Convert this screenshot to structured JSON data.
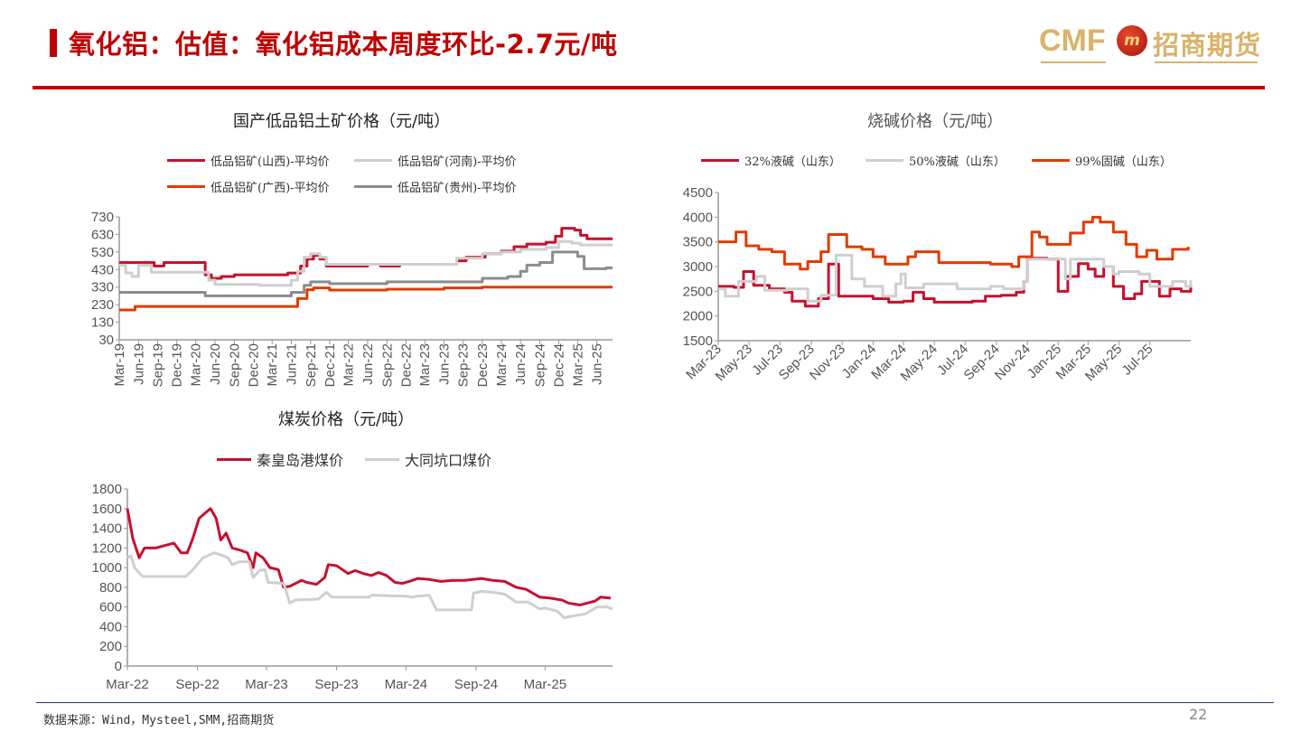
{
  "header": {
    "title": "氧化铝：估值：氧化铝成本周度环比-2.7元/吨",
    "logo": {
      "latin": "CMF",
      "emblem": "m",
      "chinese": "招商期货"
    }
  },
  "footer": {
    "source": "数据来源：Wind，Mysteel,SMM,招商期货",
    "page_number": "22"
  },
  "colors": {
    "accent": "#c00000",
    "red": "#c8102e",
    "light_grey": "#cfcfcf",
    "orange": "#e03c00",
    "dark_grey": "#8c8c8c"
  },
  "chart_data": [
    {
      "type": "line",
      "interpolation": "step",
      "title": "国产低品铝土矿价格（元/吨）",
      "ylim": [
        30,
        730
      ],
      "yticks": [
        "730",
        "630",
        "530",
        "430",
        "330",
        "230",
        "130",
        "30"
      ],
      "xlim": [
        "2019-03-01",
        "2025-08-15"
      ],
      "xticks": [
        "Mar-19",
        "Jun-19",
        "Sep-19",
        "Dec-19",
        "Mar-20",
        "Jun-20",
        "Sep-20",
        "Dec-20",
        "Mar-21",
        "Jun-21",
        "Sep-21",
        "Dec-21",
        "Mar-22",
        "Jun-22",
        "Sep-22",
        "Dec-22",
        "Mar-23",
        "Jun-23",
        "Sep-23",
        "Dec-23",
        "Mar-24",
        "Jun-24",
        "Sep-24",
        "Dec-24",
        "Mar-25",
        "Jun-25"
      ],
      "legend_position": "top",
      "series": [
        {
          "name": "低品铝矿(山西)-平均价",
          "color": "#c8102e",
          "x": [
            "2019-03-01",
            "2019-08-15",
            "2019-10-01",
            "2020-03-01",
            "2020-04-15",
            "2020-05-15",
            "2020-07-01",
            "2020-09-01",
            "2021-05-15",
            "2021-07-15",
            "2021-08-15",
            "2021-09-15",
            "2021-10-15",
            "2021-11-15",
            "2022-06-01",
            "2022-08-01",
            "2022-11-01",
            "2023-06-15",
            "2023-08-01",
            "2023-09-15",
            "2023-12-15",
            "2024-03-01",
            "2024-05-01",
            "2024-07-01",
            "2024-10-01",
            "2024-11-15",
            "2024-12-15",
            "2025-02-15",
            "2025-03-15",
            "2025-04-15",
            "2025-08-15"
          ],
          "y": [
            470,
            450,
            470,
            470,
            400,
            380,
            390,
            400,
            410,
            450,
            490,
            510,
            490,
            450,
            460,
            450,
            460,
            460,
            480,
            500,
            520,
            535,
            560,
            575,
            585,
            620,
            665,
            655,
            625,
            605,
            605
          ]
        },
        {
          "name": "低品铝矿(河南)-平均价",
          "color": "#cfcfcf",
          "x": [
            "2019-03-01",
            "2019-04-01",
            "2019-05-01",
            "2019-06-01",
            "2019-08-01",
            "2020-03-15",
            "2020-05-01",
            "2020-06-01",
            "2021-01-01",
            "2021-06-01",
            "2021-07-01",
            "2021-08-01",
            "2021-09-01",
            "2021-10-15",
            "2021-11-15",
            "2023-06-15",
            "2023-08-01",
            "2023-12-01",
            "2024-03-01",
            "2024-06-01",
            "2024-10-01",
            "2024-12-01",
            "2025-02-01",
            "2025-03-15",
            "2025-08-15"
          ],
          "y": [
            455,
            410,
            390,
            455,
            415,
            415,
            370,
            345,
            340,
            370,
            420,
            500,
            520,
            500,
            460,
            460,
            495,
            520,
            530,
            545,
            555,
            590,
            580,
            570,
            570
          ]
        },
        {
          "name": "低品铝矿(广西)-平均价",
          "color": "#e03c00",
          "x": [
            "2019-03-01",
            "2019-05-15",
            "2021-06-01",
            "2021-07-01",
            "2021-08-15",
            "2021-09-15",
            "2021-12-01",
            "2022-09-01",
            "2023-06-01",
            "2023-12-01",
            "2025-08-15"
          ],
          "y": [
            200,
            220,
            220,
            265,
            315,
            325,
            313,
            318,
            325,
            330,
            330
          ]
        },
        {
          "name": "低品铝矿(贵州)-平均价",
          "color": "#8c8c8c",
          "x": [
            "2019-03-01",
            "2020-04-15",
            "2021-06-01",
            "2021-08-01",
            "2021-09-01",
            "2021-12-01",
            "2022-09-01",
            "2023-12-01",
            "2024-04-01",
            "2024-06-01",
            "2024-07-01",
            "2024-09-01",
            "2024-11-01",
            "2025-03-01",
            "2025-04-01",
            "2025-07-15",
            "2025-08-15"
          ],
          "y": [
            300,
            280,
            300,
            340,
            360,
            350,
            360,
            380,
            390,
            420,
            455,
            470,
            530,
            505,
            435,
            440,
            440
          ]
        }
      ]
    },
    {
      "type": "line",
      "interpolation": "step",
      "title": "烧碱价格（元/吨）",
      "ylim": [
        1500,
        4500
      ],
      "yticks": [
        "4500",
        "4000",
        "3500",
        "3000",
        "2500",
        "2000",
        "1500"
      ],
      "xlim": [
        "2023-03-01",
        "2025-09-20"
      ],
      "xticks": [
        "Mar-23",
        "May-23",
        "Jul-23",
        "Sep-23",
        "Nov-23",
        "Jan-24",
        "Mar-24",
        "May-24",
        "Jul-24",
        "Sep-24",
        "Nov-24",
        "Jan-25",
        "Mar-25",
        "May-25",
        "Jul-25"
      ],
      "legend_position": "top",
      "series": [
        {
          "name": "32%液碱（山东）",
          "color": "#c8102e",
          "x": [
            "2023-03-01",
            "2023-04-01",
            "2023-04-20",
            "2023-05-10",
            "2023-06-10",
            "2023-07-10",
            "2023-07-25",
            "2023-08-20",
            "2023-09-15",
            "2023-10-05",
            "2023-10-25",
            "2023-12-01",
            "2024-01-01",
            "2024-02-01",
            "2024-03-01",
            "2024-03-20",
            "2024-04-10",
            "2024-05-01",
            "2024-06-15",
            "2024-07-15",
            "2024-08-10",
            "2024-09-10",
            "2024-10-10",
            "2024-10-25",
            "2024-11-01",
            "2024-12-10",
            "2025-01-01",
            "2025-01-20",
            "2025-02-10",
            "2025-03-01",
            "2025-03-15",
            "2025-04-01",
            "2025-04-20",
            "2025-05-10",
            "2025-06-01",
            "2025-06-15",
            "2025-07-05",
            "2025-07-20",
            "2025-08-10",
            "2025-09-01",
            "2025-09-20"
          ],
          "y": [
            2600,
            2580,
            2900,
            2620,
            2550,
            2480,
            2300,
            2200,
            2350,
            3050,
            2400,
            2400,
            2350,
            2280,
            2300,
            2480,
            2350,
            2280,
            2280,
            2300,
            2400,
            2420,
            2480,
            2700,
            3170,
            3150,
            2500,
            2800,
            3060,
            2950,
            2800,
            3000,
            2600,
            2350,
            2450,
            2700,
            2700,
            2400,
            2550,
            2500,
            2650
          ]
        },
        {
          "name": "50%液碱（山东）",
          "color": "#cfcfcf",
          "x": [
            "2023-03-01",
            "2023-03-15",
            "2023-04-10",
            "2023-05-15",
            "2023-06-01",
            "2023-07-15",
            "2023-08-25",
            "2023-09-20",
            "2023-10-20",
            "2023-11-20",
            "2023-12-15",
            "2024-01-20",
            "2024-02-15",
            "2024-02-25",
            "2024-03-05",
            "2024-04-10",
            "2024-06-15",
            "2024-08-20",
            "2024-09-15",
            "2024-10-25",
            "2024-11-01",
            "2024-12-20",
            "2025-01-15",
            "2025-01-25",
            "2025-04-01",
            "2025-04-20",
            "2025-05-01",
            "2025-06-10",
            "2025-07-01",
            "2025-08-15",
            "2025-09-10",
            "2025-09-20"
          ],
          "y": [
            2550,
            2400,
            2700,
            2800,
            2520,
            2550,
            2300,
            2420,
            3230,
            2750,
            2600,
            2400,
            2650,
            2850,
            2570,
            2650,
            2550,
            2600,
            2550,
            2700,
            3150,
            3150,
            2750,
            3150,
            3000,
            2850,
            2900,
            2850,
            2600,
            2700,
            2600,
            2720
          ]
        },
        {
          "name": "99%固碱（山东）",
          "color": "#e03c00",
          "x": [
            "2023-03-01",
            "2023-04-05",
            "2023-04-25",
            "2023-05-20",
            "2023-06-15",
            "2023-07-10",
            "2023-08-10",
            "2023-08-25",
            "2023-09-20",
            "2023-10-05",
            "2023-11-10",
            "2023-12-10",
            "2024-01-01",
            "2024-01-25",
            "2024-02-20",
            "2024-03-10",
            "2024-03-25",
            "2024-05-10",
            "2024-08-20",
            "2024-10-01",
            "2024-10-15",
            "2024-11-10",
            "2024-11-25",
            "2024-12-10",
            "2025-01-10",
            "2025-01-25",
            "2025-02-20",
            "2025-03-10",
            "2025-03-25",
            "2025-04-20",
            "2025-05-15",
            "2025-06-05",
            "2025-06-25",
            "2025-07-15",
            "2025-08-15",
            "2025-09-15"
          ],
          "y": [
            3500,
            3700,
            3420,
            3350,
            3300,
            3050,
            2950,
            3100,
            3300,
            3650,
            3400,
            3350,
            3200,
            3050,
            3050,
            3200,
            3300,
            3080,
            3050,
            3000,
            3200,
            3700,
            3600,
            3450,
            3450,
            3680,
            3900,
            4000,
            3900,
            3700,
            3450,
            3200,
            3330,
            3150,
            3350,
            3400
          ]
        }
      ]
    },
    {
      "type": "line",
      "title": "煤炭价格（元/吨）",
      "ylim": [
        0,
        1800
      ],
      "yticks": [
        "1800",
        "1600",
        "1400",
        "1200",
        "1000",
        "800",
        "600",
        "400",
        "200",
        "0"
      ],
      "xlim": [
        "2022-03-01",
        "2025-08-25"
      ],
      "xticks": [
        "Mar-22",
        "Sep-22",
        "Mar-23",
        "Sep-23",
        "Mar-24",
        "Sep-24",
        "Mar-25"
      ],
      "legend_position": "top",
      "series": [
        {
          "name": "秦皇岛港煤价",
          "color": "#c8102e",
          "x": [
            "2022-03-01",
            "2022-03-15",
            "2022-04-01",
            "2022-04-15",
            "2022-05-15",
            "2022-07-01",
            "2022-07-20",
            "2022-08-05",
            "2022-08-20",
            "2022-09-05",
            "2022-10-05",
            "2022-10-20",
            "2022-11-01",
            "2022-11-15",
            "2022-12-01",
            "2022-12-20",
            "2023-01-10",
            "2023-01-25",
            "2023-02-01",
            "2023-02-20",
            "2023-03-10",
            "2023-04-01",
            "2023-04-15",
            "2023-05-01",
            "2023-06-01",
            "2023-06-15",
            "2023-07-10",
            "2023-08-01",
            "2023-08-10",
            "2023-09-01",
            "2023-10-01",
            "2023-10-20",
            "2023-11-10",
            "2023-12-01",
            "2023-12-20",
            "2024-01-10",
            "2024-02-01",
            "2024-02-20",
            "2024-03-10",
            "2024-04-01",
            "2024-05-01",
            "2024-06-01",
            "2024-07-01",
            "2024-08-01",
            "2024-09-15",
            "2024-10-15",
            "2024-11-15",
            "2024-12-15",
            "2025-01-10",
            "2025-02-15",
            "2025-03-15",
            "2025-04-15",
            "2025-05-01",
            "2025-06-01",
            "2025-06-20",
            "2025-07-10",
            "2025-07-25",
            "2025-08-20"
          ],
          "y": [
            1600,
            1300,
            1100,
            1200,
            1200,
            1250,
            1150,
            1150,
            1300,
            1500,
            1600,
            1500,
            1280,
            1350,
            1200,
            1180,
            1150,
            1000,
            1150,
            1100,
            1000,
            980,
            800,
            810,
            870,
            850,
            830,
            900,
            1030,
            1020,
            940,
            970,
            940,
            920,
            950,
            920,
            850,
            840,
            860,
            890,
            880,
            860,
            870,
            870,
            890,
            870,
            860,
            800,
            780,
            700,
            690,
            670,
            640,
            620,
            640,
            660,
            700,
            690
          ]
        },
        {
          "name": "大同坑口煤价",
          "color": "#cfcfcf",
          "x": [
            "2022-03-01",
            "2022-03-10",
            "2022-03-20",
            "2022-04-10",
            "2022-08-01",
            "2022-08-20",
            "2022-09-15",
            "2022-10-15",
            "2022-11-01",
            "2022-11-20",
            "2022-12-01",
            "2022-12-20",
            "2023-01-15",
            "2023-01-25",
            "2023-02-10",
            "2023-02-25",
            "2023-03-05",
            "2023-04-15",
            "2023-05-01",
            "2023-05-15",
            "2023-07-15",
            "2023-08-05",
            "2023-08-20",
            "2023-11-25",
            "2023-12-01",
            "2024-03-01",
            "2024-03-15",
            "2024-04-01",
            "2024-05-01",
            "2024-05-20",
            "2024-08-20",
            "2024-08-25",
            "2024-09-15",
            "2024-10-15",
            "2024-11-15",
            "2024-12-15",
            "2025-01-15",
            "2025-02-15",
            "2025-03-01",
            "2025-04-01",
            "2025-04-20",
            "2025-05-15",
            "2025-06-15",
            "2025-07-15",
            "2025-08-10",
            "2025-08-25"
          ],
          "y": [
            1100,
            1120,
            1000,
            910,
            910,
            980,
            1100,
            1150,
            1130,
            1100,
            1030,
            1060,
            1060,
            900,
            970,
            980,
            850,
            840,
            640,
            670,
            680,
            750,
            700,
            700,
            720,
            710,
            700,
            710,
            720,
            570,
            570,
            740,
            760,
            750,
            730,
            650,
            650,
            580,
            590,
            560,
            490,
            510,
            530,
            600,
            600,
            580
          ]
        }
      ]
    }
  ]
}
